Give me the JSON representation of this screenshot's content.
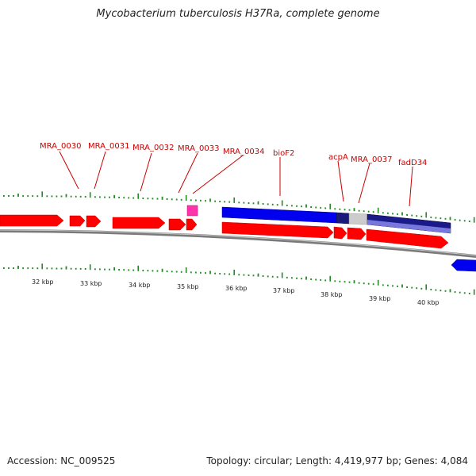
{
  "header": {
    "title": "Mycobacterium tuberculosis H37Ra, complete genome"
  },
  "footer": {
    "accession": "Accession: NC_009525",
    "stats": "Topology: circular; Length: 4,419,977 bp; Genes: 4,084"
  },
  "colors": {
    "forward_gene": "#ff0000",
    "reverse_gene": "#0000ff",
    "rna_gene": "#ff3399",
    "tick": "#228b22",
    "label": "#cc0000",
    "backbone": "#888888"
  },
  "gene_labels": [
    {
      "name": "MRA_0030",
      "text": "MRA_0030"
    },
    {
      "name": "MRA_0031",
      "text": "MRA_0031"
    },
    {
      "name": "MRA_0032",
      "text": "MRA_0032"
    },
    {
      "name": "MRA_0033",
      "text": "MRA_0033"
    },
    {
      "name": "MRA_0034",
      "text": "MRA_0034"
    },
    {
      "name": "bioF2",
      "text": "bioF2"
    },
    {
      "name": "acpA",
      "text": "acpA"
    },
    {
      "name": "MRA_0037",
      "text": "MRA_0037"
    },
    {
      "name": "fadD34",
      "text": "fadD34"
    }
  ],
  "kbp_labels": [
    "32 kbp",
    "33 kbp",
    "34 kbp",
    "35 kbp",
    "36 kbp",
    "37 kbp",
    "38 kbp",
    "39 kbp",
    "40 kbp"
  ]
}
